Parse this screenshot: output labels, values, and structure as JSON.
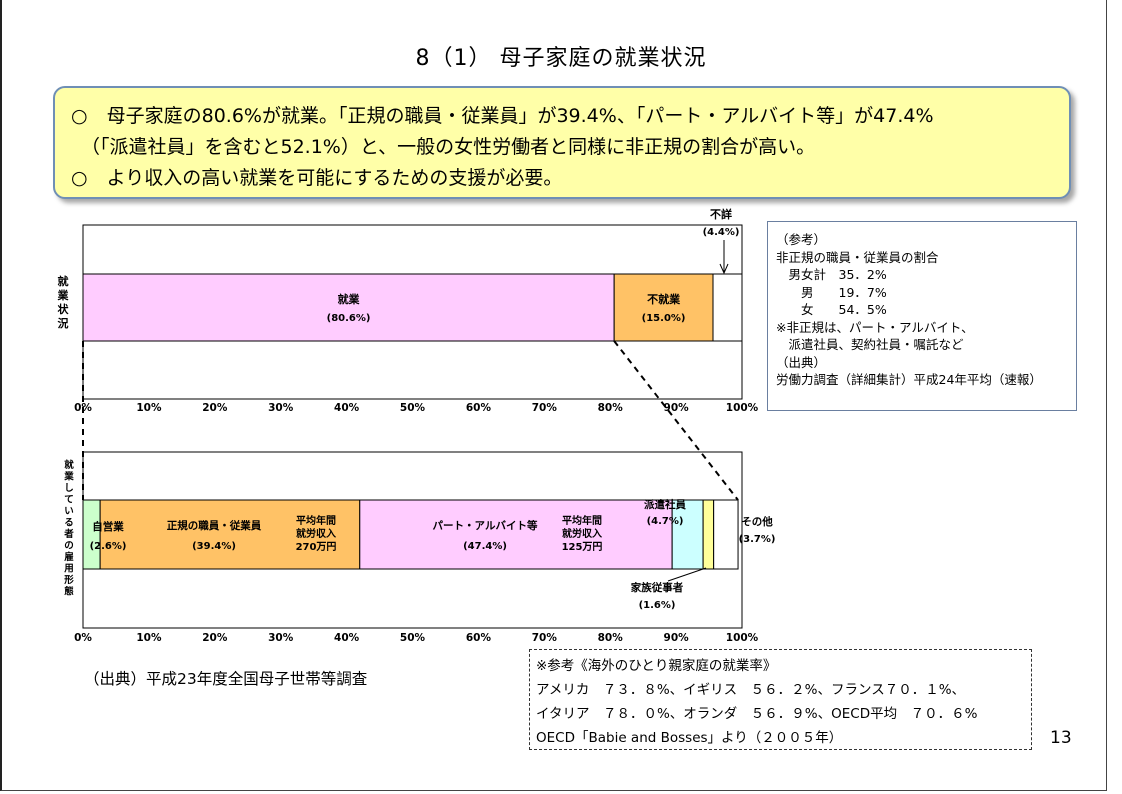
{
  "title": "8（1） 母子家庭の就業状況",
  "summary": {
    "bullet": "○",
    "lines": [
      "母子家庭の80.6%が就業。「正規の職員・従業員」が39.4%、「パート・アルバイト等」が47.4%",
      "（「派遣社員」を含むと52.1%）と、一般の女性労働者と同様に非正規の割合が高い。",
      "より収入の高い就業を可能にするための支援が必要。"
    ]
  },
  "chart_data": [
    {
      "type": "bar",
      "orientation": "horizontal-stacked",
      "category": "就業状況",
      "x_ticks": [
        "0%",
        "10%",
        "20%",
        "30%",
        "40%",
        "50%",
        "60%",
        "70%",
        "80%",
        "90%",
        "100%"
      ],
      "xlim": [
        0,
        100
      ],
      "series": [
        {
          "name": "就業",
          "value": 80.6,
          "label": "(80.6%)",
          "color": "#ffccff"
        },
        {
          "name": "不就業",
          "value": 15.0,
          "label": "(15.0%)",
          "color": "#ffc266"
        },
        {
          "name": "不詳",
          "value": 4.4,
          "label": "(4.4%)",
          "color": "#ffffff"
        }
      ]
    },
    {
      "type": "bar",
      "orientation": "horizontal-stacked",
      "category": "就業している者の雇用形態",
      "x_ticks": [
        "0%",
        "10%",
        "20%",
        "30%",
        "40%",
        "50%",
        "60%",
        "70%",
        "80%",
        "90%",
        "100%"
      ],
      "xlim": [
        0,
        100
      ],
      "series": [
        {
          "name": "自営業",
          "value": 2.6,
          "label": "(2.6%)",
          "color": "#ccffcc"
        },
        {
          "name": "正規の職員・従業員",
          "value": 39.4,
          "label": "(39.4%)",
          "color": "#ffc266",
          "note": [
            "平均年間",
            "就労収入",
            "270万円"
          ]
        },
        {
          "name": "パート・アルバイト等",
          "value": 47.4,
          "label": "(47.4%)",
          "color": "#ffccff",
          "note": [
            "平均年間",
            "就労収入",
            "125万円"
          ]
        },
        {
          "name": "派遣社員",
          "value": 4.7,
          "label": "(4.7%)",
          "color": "#ccffff"
        },
        {
          "name": "家族従事者",
          "value": 1.6,
          "label": "(1.6%)",
          "color": "#ffff99"
        },
        {
          "name": "その他",
          "value": 3.7,
          "label": "(3.7%)",
          "color": "#ffffff"
        }
      ]
    }
  ],
  "reference": {
    "lines": [
      "（参考）",
      "非正規の職員・従業員の割合",
      "　男女計　35．2%",
      "　　男　　19．7%",
      "　　女　　54．5%",
      "※非正規は、パート・アルバイト、",
      "　派遣社員、契約社員・嘱託など",
      "",
      "（出典）",
      "労働力調査（詳細集計）平成24年平均（速報）"
    ]
  },
  "source": "（出典）平成23年度全国母子世帯等調査",
  "overseas": {
    "lines": [
      "※参考《海外のひとり親家庭の就業率》",
      "アメリカ　７３．８%、イギリス　５６．２%、フランス７０．１%、",
      "イタリア　７８．０%、オランダ　５６．９%、OECD平均　７０．６%",
      "OECD「Babie and Bosses」より（２００５年）"
    ]
  },
  "page_number": "13"
}
